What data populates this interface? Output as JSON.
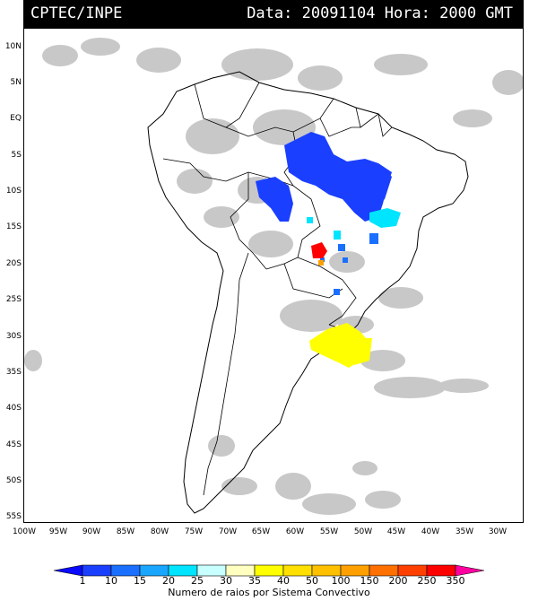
{
  "header": {
    "source": "CPTEC/INPE",
    "timestamp": "Data: 20091104 Hora: 2000 GMT"
  },
  "axes": {
    "lat_labels": [
      "10N",
      "5N",
      "EQ",
      "5S",
      "10S",
      "15S",
      "20S",
      "25S",
      "30S",
      "35S",
      "40S",
      "45S",
      "50S",
      "55S"
    ],
    "lat_values": [
      10,
      5,
      0,
      -5,
      -10,
      -15,
      -20,
      -25,
      -30,
      -35,
      -40,
      -45,
      -50,
      -55
    ],
    "lon_labels": [
      "100W",
      "95W",
      "90W",
      "85W",
      "80W",
      "75W",
      "70W",
      "65W",
      "60W",
      "55W",
      "50W",
      "45W",
      "40W",
      "35W",
      "30W"
    ],
    "lon_values": [
      -100,
      -95,
      -90,
      -85,
      -80,
      -75,
      -70,
      -65,
      -60,
      -55,
      -50,
      -45,
      -40,
      -35,
      -30
    ],
    "lat_range": [
      -56,
      13.5
    ],
    "lon_range": [
      -101,
      -30
    ]
  },
  "colorbar": {
    "ticks": [
      "1",
      "10",
      "15",
      "20",
      "25",
      "30",
      "35",
      "40",
      "50",
      "100",
      "150",
      "200",
      "250",
      "350"
    ],
    "colors": [
      "#0a0aff",
      "#1a3fff",
      "#1a6fff",
      "#1aa6ff",
      "#00e5ff",
      "#c8ffff",
      "#ffffc0",
      "#ffff00",
      "#ffe000",
      "#ffc000",
      "#ffa000",
      "#ff7000",
      "#ff4000",
      "#ff0000",
      "#ff00a0"
    ],
    "caption": "Numero de raios por Sistema Convectivo"
  },
  "legend_colors": {
    "cloud": "#c8c8c8",
    "land_border": "#000000"
  }
}
